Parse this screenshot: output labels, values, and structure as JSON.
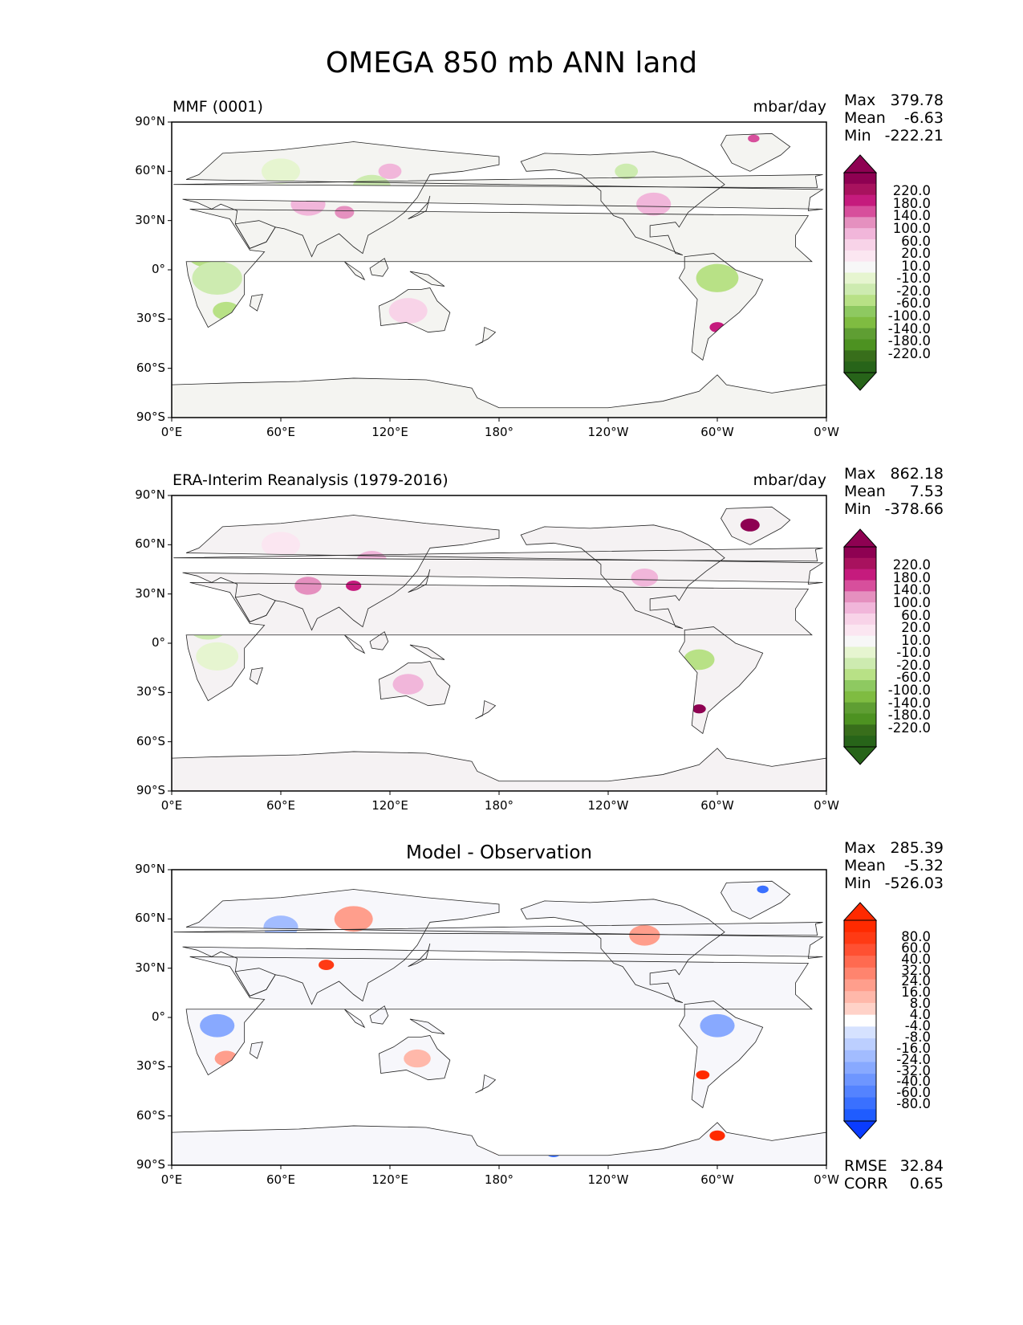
{
  "figure": {
    "title": "OMEGA 850 mb ANN land"
  },
  "axes": {
    "x_ticks": [
      "0°E",
      "60°E",
      "120°E",
      "180°",
      "120°W",
      "60°W",
      "0°W"
    ],
    "y_ticks": [
      "90°N",
      "60°N",
      "30°N",
      "0°",
      "30°S",
      "60°S",
      "90°S"
    ]
  },
  "panels": [
    {
      "title_left": "MMF (0001)",
      "title_right": "mbar/day",
      "title_center": "",
      "stats": [
        {
          "label": "Max",
          "value": "379.78"
        },
        {
          "label": "Mean",
          "value": "-6.63"
        },
        {
          "label": "Min",
          "value": "-222.21"
        }
      ],
      "colorbar": {
        "labels": [
          "220.0",
          "180.0",
          "140.0",
          "100.0",
          "60.0",
          "20.0",
          "10.0",
          "-10.0",
          "-20.0",
          "-60.0",
          "-100.0",
          "-140.0",
          "-180.0",
          "-220.0"
        ],
        "colors": [
          "#8e0152",
          "#a8125e",
          "#c51b7d",
          "#d74f9c",
          "#e590bf",
          "#f1b6da",
          "#f8d3e8",
          "#fbe6f1",
          "#f7f7f7",
          "#e6f5d0",
          "#cdebb0",
          "#b8e186",
          "#8ec961",
          "#7fbc41",
          "#5f9e33",
          "#4d9221",
          "#386e1b",
          "#276419"
        ],
        "upper_color": "#8e0152",
        "lower_color": "#276419"
      },
      "bottom_stats": []
    },
    {
      "title_left": "ERA-Interim Reanalysis (1979-2016)",
      "title_right": "mbar/day",
      "title_center": "",
      "stats": [
        {
          "label": "Max",
          "value": "862.18"
        },
        {
          "label": "Mean",
          "value": "7.53"
        },
        {
          "label": "Min",
          "value": "-378.66"
        }
      ],
      "colorbar": {
        "labels": [
          "220.0",
          "180.0",
          "140.0",
          "100.0",
          "60.0",
          "20.0",
          "10.0",
          "-10.0",
          "-20.0",
          "-60.0",
          "-100.0",
          "-140.0",
          "-180.0",
          "-220.0"
        ],
        "colors": [
          "#8e0152",
          "#a8125e",
          "#c51b7d",
          "#d74f9c",
          "#e590bf",
          "#f1b6da",
          "#f8d3e8",
          "#fbe6f1",
          "#f7f7f7",
          "#e6f5d0",
          "#cdebb0",
          "#b8e186",
          "#8ec961",
          "#7fbc41",
          "#5f9e33",
          "#4d9221",
          "#386e1b",
          "#276419"
        ],
        "upper_color": "#8e0152",
        "lower_color": "#276419"
      },
      "bottom_stats": []
    },
    {
      "title_left": "",
      "title_right": "",
      "title_center": "Model - Observation",
      "stats": [
        {
          "label": "Max",
          "value": "285.39"
        },
        {
          "label": "Mean",
          "value": "-5.32"
        },
        {
          "label": "Min",
          "value": "-526.03"
        }
      ],
      "colorbar": {
        "labels": [
          "80.0",
          "60.0",
          "40.0",
          "32.0",
          "24.0",
          "16.0",
          "8.0",
          "4.0",
          "-4.0",
          "-8.0",
          "-16.0",
          "-24.0",
          "-32.0",
          "-40.0",
          "-60.0",
          "-80.0"
        ],
        "colors": [
          "#ff2a00",
          "#ff3a14",
          "#ff5032",
          "#ff6a50",
          "#ff846e",
          "#ff9e8c",
          "#ffb8aa",
          "#ffd2c8",
          "#ffffff",
          "#d6e2ff",
          "#bccfff",
          "#a2bcff",
          "#88a9ff",
          "#6e96ff",
          "#5483ff",
          "#3a70ff",
          "#1f5cff"
        ],
        "upper_color": "#ff2a00",
        "lower_color": "#0a3cff"
      },
      "bottom_stats": [
        {
          "label": "RMSE",
          "value": "32.84"
        },
        {
          "label": "CORR",
          "value": "0.65"
        }
      ]
    }
  ]
}
